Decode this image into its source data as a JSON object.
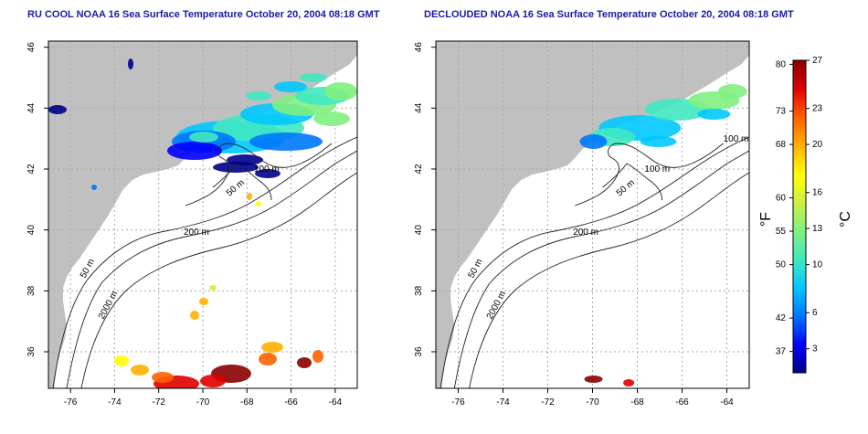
{
  "panels": [
    {
      "id": "left",
      "title": "RU COOL NOAA 16 Sea Surface Temperature October 20, 2004 08:18 GMT",
      "variant": "raw",
      "contour_labels": [
        "200 m",
        "50 m",
        "2000 m",
        "50 m",
        "100 m"
      ]
    },
    {
      "id": "right",
      "title": "DECLOUDED NOAA 16 Sea Surface Temperature October 20, 2004 08:18 GMT",
      "variant": "declouded",
      "contour_labels": [
        "200 m",
        "50 m",
        "2000 m",
        "50 m",
        "100 m",
        "100 m"
      ]
    }
  ],
  "map": {
    "lon_ticks": [
      "-76",
      "-74",
      "-72",
      "-70",
      "-68",
      "-66",
      "-64"
    ],
    "lat_ticks": [
      "36",
      "38",
      "40",
      "42",
      "44",
      "46"
    ],
    "land_color": "#c0c0c0",
    "water_color": "#ffffff",
    "grid_lines": "dotted"
  },
  "colorbar": {
    "f_label": "°F",
    "c_label": "°C",
    "f_ticks": [
      "80",
      "73",
      "68",
      "60",
      "55",
      "50",
      "42",
      "37"
    ],
    "c_ticks": [
      "27",
      "23",
      "20",
      "16",
      "13",
      "10",
      "6",
      "3"
    ],
    "colors": [
      "#00008b",
      "#0000ff",
      "#0077ff",
      "#00c8ff",
      "#40e8c0",
      "#80f080",
      "#d0f040",
      "#ffff00",
      "#ffb000",
      "#ff6000",
      "#e00000",
      "#8b0000"
    ]
  }
}
